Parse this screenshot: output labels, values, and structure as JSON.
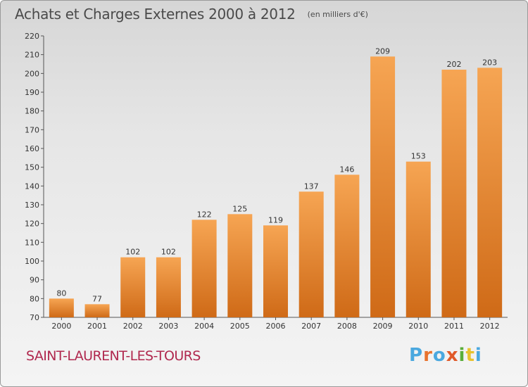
{
  "chart_data": {
    "type": "bar",
    "title": "Achats et Charges Externes 2000 à 2012",
    "subtitle": "(en milliers d'€)",
    "categories": [
      "2000",
      "2001",
      "2002",
      "2003",
      "2004",
      "2005",
      "2006",
      "2007",
      "2008",
      "2009",
      "2010",
      "2011",
      "2012"
    ],
    "values": [
      80,
      77,
      102,
      102,
      122,
      125,
      119,
      137,
      146,
      209,
      153,
      202,
      203
    ],
    "ylim": [
      70,
      220
    ],
    "yticks": [
      70,
      80,
      90,
      100,
      110,
      120,
      130,
      140,
      150,
      160,
      170,
      180,
      190,
      200,
      210,
      220
    ],
    "grid": false,
    "xlabel": "",
    "ylabel": ""
  },
  "footer": {
    "place": "SAINT-LAURENT-LES-TOURS",
    "brand": "Proxiti",
    "brand_letters": [
      "P",
      "r",
      "o",
      "x",
      "i",
      "t",
      "i"
    ]
  },
  "colors": {
    "bar_top": "#f6a553",
    "bar_bottom": "#cf6a17",
    "place": "#b0284e",
    "title": "#4a4a4a"
  }
}
